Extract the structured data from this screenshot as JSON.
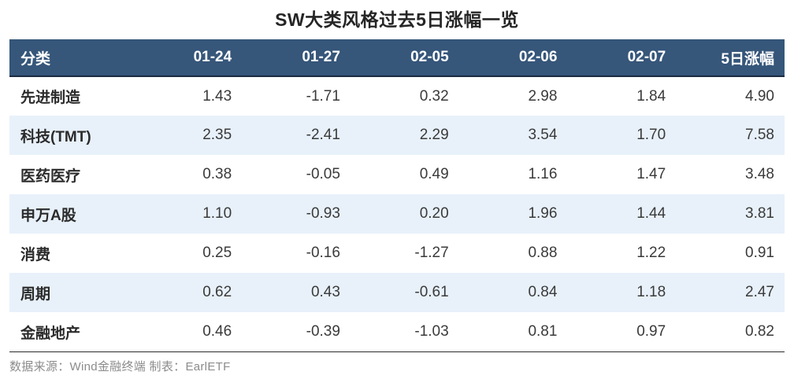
{
  "chart_data": {
    "type": "table",
    "title": "SW大类风格过去5日涨幅一览",
    "columns": [
      "分类",
      "01-24",
      "01-27",
      "02-05",
      "02-06",
      "02-07",
      "5日涨幅"
    ],
    "rows": [
      {
        "category": "先进制造",
        "values": [
          "1.43",
          "-1.71",
          "0.32",
          "2.98",
          "1.84",
          "4.90"
        ]
      },
      {
        "category": "科技(TMT)",
        "values": [
          "2.35",
          "-2.41",
          "2.29",
          "3.54",
          "1.70",
          "7.58"
        ]
      },
      {
        "category": "医药医疗",
        "values": [
          "0.38",
          "-0.05",
          "0.49",
          "1.16",
          "1.47",
          "3.48"
        ]
      },
      {
        "category": "申万A股",
        "values": [
          "1.10",
          "-0.93",
          "0.20",
          "1.96",
          "1.44",
          "3.81"
        ]
      },
      {
        "category": "消费",
        "values": [
          "0.25",
          "-0.16",
          "-1.27",
          "0.88",
          "1.22",
          "0.91"
        ]
      },
      {
        "category": "周期",
        "values": [
          "0.62",
          "0.43",
          "-0.61",
          "0.84",
          "1.18",
          "2.47"
        ]
      },
      {
        "category": "金融地产",
        "values": [
          "0.46",
          "-0.39",
          "-1.03",
          "0.81",
          "0.97",
          "0.82"
        ]
      }
    ],
    "source_note": "数据来源：Wind金融终端 制表：EarlETF",
    "layout_hints": {
      "first_column_align": "left",
      "numeric_columns_align": "right",
      "zebra_striping": "even rows tinted"
    }
  },
  "colors": {
    "header_bg": "#36567A",
    "header_text": "#FFFFFF",
    "header_bottom_border": "#1B2B40",
    "stripe_bg": "#E8F1FA",
    "body_text": "#3A3A3A",
    "category_text": "#2B2B2B",
    "title_text": "#252525",
    "footer_text": "#8C8C8C",
    "footer_divider": "#2B2B2B"
  }
}
